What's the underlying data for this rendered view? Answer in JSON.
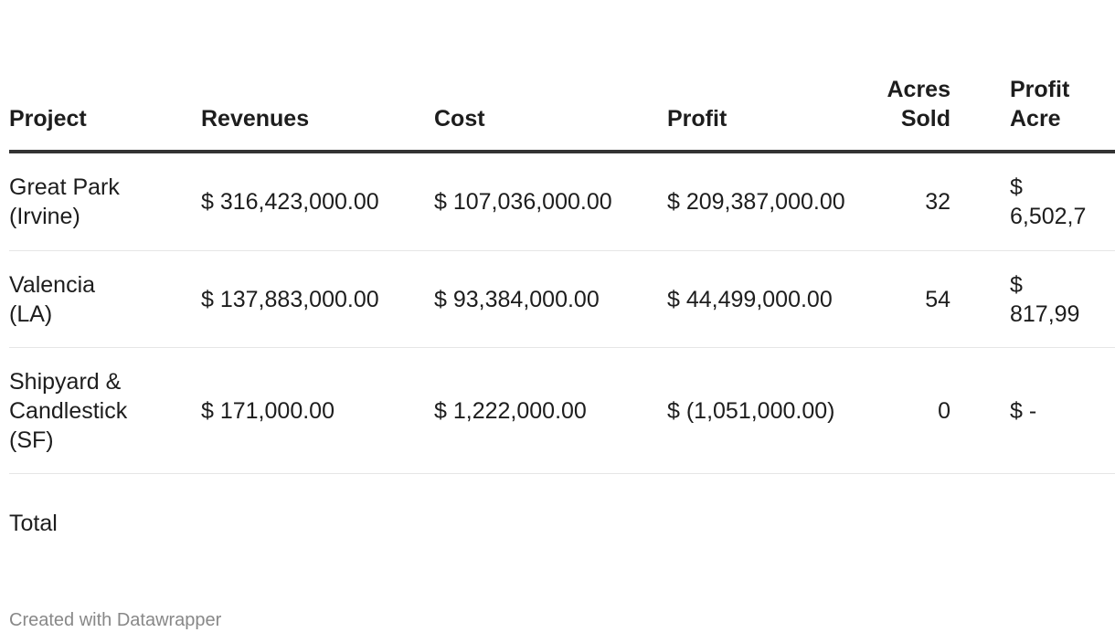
{
  "table": {
    "headers": [
      "Project",
      "Revenues",
      "Cost",
      "Profit",
      "Acres Sold",
      "Profit Acre"
    ],
    "rows": [
      {
        "project": "Great Park (Irvine)",
        "revenues": "$ 316,423,000.00",
        "cost": "$ 107,036,000.00",
        "profit": "$ 209,387,000.00",
        "acres": "32",
        "profit_acre": "$ 6,502,7"
      },
      {
        "project": "Valencia (LA)",
        "revenues": "$ 137,883,000.00",
        "cost": "$ 93,384,000.00",
        "profit": "$ 44,499,000.00",
        "acres": "54",
        "profit_acre": "$ 817,99"
      },
      {
        "project": "Shipyard & Candlestick (SF)",
        "revenues": "$ 171,000.00",
        "cost": "$ 1,222,000.00",
        "profit": "$ (1,051,000.00)",
        "acres": "0",
        "profit_acre": "$ -"
      }
    ],
    "total_label": "Total"
  },
  "footer": "Created with Datawrapper"
}
